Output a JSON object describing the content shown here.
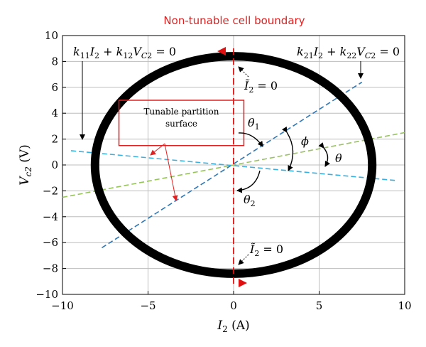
{
  "chart_data": {
    "type": "line",
    "title": "Non-tunable cell boundary",
    "xlabel": "I₂ (A)",
    "ylabel": "V c2 (V)",
    "xlim": [
      -10,
      10
    ],
    "ylim": [
      -10,
      10
    ],
    "xticks": [
      "−10",
      "−5",
      "0",
      "5",
      "10"
    ],
    "yticks": [
      "−10",
      "−8",
      "−6",
      "−4",
      "−2",
      "0",
      "2",
      "4",
      "6",
      "8",
      "10"
    ],
    "grid": true,
    "ellipse": {
      "cx": 0,
      "cy": 0,
      "rx": 8.1,
      "ry": 8.4
    },
    "series": [
      {
        "color": "#2f78b8",
        "x": [
          -7.7,
          7.5
        ],
        "y": [
          -6.4,
          6.4
        ]
      },
      {
        "color": "#36b0e0",
        "x": [
          -9.5,
          9.5
        ],
        "y": [
          1.1,
          -1.2
        ]
      },
      {
        "color": "#96c45a",
        "x": [
          -10,
          10
        ],
        "y": [
          -2.5,
          2.5
        ]
      }
    ],
    "vertical_line": {
      "x": 0,
      "color": "#e01010"
    },
    "box": {
      "x0": -6.7,
      "x1": 0.6,
      "y0": 1.5,
      "y1": 5.0,
      "label_line1": "Tunable partition",
      "label_line2": "surface",
      "color": "#e02020"
    },
    "annotations": {
      "eq_left": "k₁₁I₂ + k₁₂V_C2 = 0",
      "eq_right": "k₂₁I₂ + k₂₂V_C2 = 0",
      "i2_zero_top": "Ĩ₂ = 0",
      "i2_zero_bottom": "Ĩ₂ = 0",
      "theta1_main": "θ",
      "theta1_sub": "1",
      "theta2_main": "θ",
      "theta2_sub": "2",
      "phi": "ϕ",
      "theta": "θ"
    }
  },
  "labels": {
    "x_main": "I",
    "x_sub": "2",
    "x_unit": " (A)",
    "y_main": "V",
    "y_sub": "c2",
    "y_unit": " (V)"
  }
}
